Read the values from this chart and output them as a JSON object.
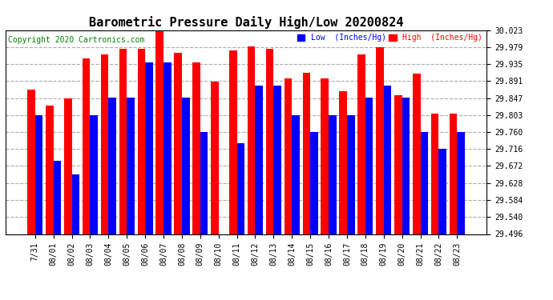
{
  "title": "Barometric Pressure Daily High/Low 20200824",
  "copyright": "Copyright 2020 Cartronics.com",
  "ylabel_right_ticks": [
    29.496,
    29.54,
    29.584,
    29.628,
    29.672,
    29.716,
    29.76,
    29.803,
    29.847,
    29.891,
    29.935,
    29.979,
    30.023
  ],
  "ylim": [
    29.496,
    30.023
  ],
  "categories": [
    "7/31",
    "08/01",
    "08/02",
    "08/03",
    "08/04",
    "08/05",
    "08/06",
    "08/07",
    "08/08",
    "08/09",
    "08/10",
    "08/11",
    "08/12",
    "08/13",
    "08/14",
    "08/15",
    "08/16",
    "08/17",
    "08/18",
    "08/19",
    "08/20",
    "08/21",
    "08/22",
    "08/23"
  ],
  "high_values": [
    29.87,
    29.828,
    29.847,
    29.95,
    29.96,
    29.975,
    29.975,
    30.02,
    29.965,
    29.94,
    29.89,
    29.97,
    29.98,
    29.975,
    29.898,
    29.912,
    29.898,
    29.865,
    29.96,
    29.979,
    29.855,
    29.91,
    29.808,
    29.808
  ],
  "low_values": [
    29.803,
    29.686,
    29.65,
    29.803,
    29.848,
    29.848,
    29.94,
    29.94,
    29.848,
    29.76,
    29.496,
    29.73,
    29.88,
    29.88,
    29.803,
    29.76,
    29.803,
    29.803,
    29.848,
    29.88,
    29.848,
    29.76,
    29.716,
    29.76
  ],
  "high_color": "#ff0000",
  "low_color": "#0000ff",
  "background_color": "#ffffff",
  "grid_color": "#aaaaaa",
  "title_fontsize": 11,
  "copyright_fontsize": 7,
  "tick_fontsize": 7,
  "legend_low_label": "Low  (Inches/Hg)",
  "legend_high_label": "High  (Inches/Hg)"
}
